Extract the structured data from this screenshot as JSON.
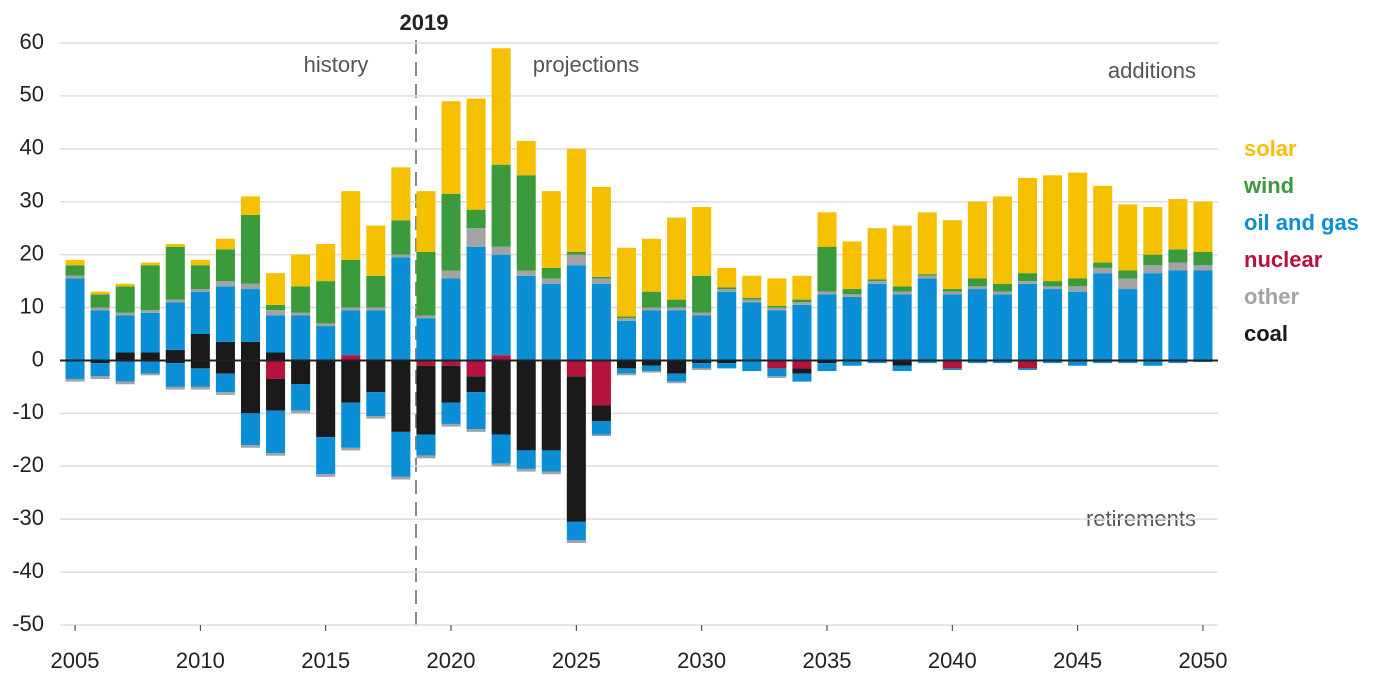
{
  "chart_data": {
    "type": "stacked_bar",
    "annotations": {
      "divider": "2019",
      "history": "history",
      "projections": "projections",
      "additions": "additions",
      "retirements": "retirements"
    },
    "x": [
      2005,
      2006,
      2007,
      2008,
      2009,
      2010,
      2011,
      2012,
      2013,
      2014,
      2015,
      2016,
      2017,
      2018,
      2019,
      2020,
      2021,
      2022,
      2023,
      2024,
      2025,
      2026,
      2027,
      2028,
      2029,
      2030,
      2031,
      2032,
      2033,
      2034,
      2035,
      2036,
      2037,
      2038,
      2039,
      2040,
      2041,
      2042,
      2043,
      2044,
      2045,
      2046,
      2047,
      2048,
      2049,
      2050
    ],
    "xlim": [
      2004.4,
      2050.6
    ],
    "xticks": [
      2005,
      2010,
      2015,
      2020,
      2025,
      2030,
      2035,
      2040,
      2045,
      2050
    ],
    "ylim": [
      -50,
      60
    ],
    "yticks": [
      -50,
      -40,
      -30,
      -20,
      -10,
      0,
      10,
      20,
      30,
      40,
      50,
      60
    ],
    "grid": true,
    "legend": "right",
    "series": [
      {
        "name": "solar",
        "color": "#f5c000",
        "values": [
          1,
          0.5,
          0.5,
          0.5,
          0.5,
          1,
          2,
          3.5,
          6,
          6,
          7,
          13,
          9.5,
          10,
          11.5,
          17.5,
          21,
          22,
          6.5,
          14.5,
          19.5,
          17,
          13,
          10,
          15.5,
          13,
          3.7,
          4.2,
          5.2,
          4.5,
          6.5,
          9,
          9.7,
          11.5,
          11.7,
          13,
          14.5,
          16.5,
          18,
          20,
          20,
          14.5,
          12.5,
          9,
          9.5,
          9.5
        ],
        "retirements": [
          0,
          0,
          0,
          0,
          0,
          0,
          0,
          0,
          0,
          0,
          0,
          0,
          0,
          0,
          0,
          0,
          0,
          0,
          0,
          0,
          0,
          0,
          0,
          0,
          0,
          0,
          0,
          0,
          0,
          0,
          0,
          0,
          0,
          0,
          0,
          0,
          0,
          0,
          0,
          0,
          0,
          0,
          0,
          0,
          0,
          0
        ]
      },
      {
        "name": "wind",
        "color": "#3a9a3c",
        "values": [
          2,
          2.5,
          5,
          8.5,
          10,
          4.5,
          6,
          13,
          1,
          5,
          8,
          9,
          6,
          6.5,
          12,
          14.5,
          3.5,
          15.5,
          18,
          2,
          0.5,
          0.3,
          0.3,
          3,
          1.5,
          7,
          0.3,
          0.3,
          0.3,
          0.5,
          8.5,
          1,
          0.3,
          1,
          0.3,
          0.5,
          1.5,
          1.5,
          1.5,
          1,
          1.5,
          1,
          1.5,
          2,
          2.5,
          2.5
        ],
        "retirements": [
          0,
          0,
          0,
          0,
          0,
          0,
          0,
          0,
          0,
          0,
          0,
          0,
          0,
          0,
          0,
          0,
          0,
          0,
          0,
          0,
          0,
          0,
          0,
          0,
          0,
          0,
          0,
          0,
          0,
          0,
          0,
          0,
          0,
          0,
          0,
          0,
          0,
          0,
          0,
          0,
          0,
          0,
          0,
          0,
          0,
          0
        ]
      },
      {
        "name": "oil and gas",
        "color": "#0a8fd6",
        "values": [
          15.5,
          9.5,
          7,
          7.5,
          9,
          8,
          10.5,
          10,
          7,
          8.5,
          6.5,
          8.5,
          9.5,
          19.5,
          8,
          15.5,
          21.5,
          19,
          16,
          14.5,
          18,
          14.5,
          7.5,
          9.5,
          9.5,
          8.5,
          13,
          11,
          9.5,
          10.5,
          12.5,
          12,
          14.5,
          12.5,
          15.5,
          12.5,
          13.5,
          12.5,
          14.5,
          13.5,
          13,
          16.5,
          13.5,
          16.5,
          17,
          17
        ],
        "retirements": [
          -3.5,
          -2.5,
          -4,
          -2.5,
          -4.5,
          -3.5,
          -3.5,
          -6,
          -8,
          -5,
          -7,
          -8.5,
          -4.5,
          -8.5,
          -4,
          -4,
          -7,
          -5.5,
          -3.5,
          -4,
          -3.5,
          -2.5,
          -1,
          -1,
          -1.5,
          -1,
          -1,
          -2,
          -1.5,
          -1.5,
          -1.5,
          -1,
          -0.5,
          -1,
          -0.5,
          -0.3,
          -0.5,
          -0.5,
          -0.3,
          -0.5,
          -1,
          -0.5,
          -0.5,
          -1,
          -0.5,
          -0.3
        ]
      },
      {
        "name": "nuclear",
        "color": "#b5123e",
        "values": [
          0,
          0,
          0,
          0,
          0,
          0,
          0,
          0,
          0,
          0,
          0,
          1,
          0,
          0,
          0,
          0,
          0,
          1,
          0,
          0,
          0,
          0,
          0,
          0,
          0,
          0,
          0,
          0,
          0,
          0,
          0,
          0,
          0,
          0,
          0,
          0,
          0,
          0,
          0,
          0,
          0,
          0,
          0,
          0,
          0,
          0
        ],
        "retirements": [
          0,
          0,
          0,
          0,
          0,
          0,
          0,
          0,
          -3.5,
          0,
          0,
          0,
          0,
          0,
          -1,
          -1,
          -3,
          0,
          0,
          0,
          -3,
          -8.5,
          0,
          0,
          0,
          0,
          0,
          0,
          -1.5,
          -1.5,
          0,
          0,
          0,
          0,
          0,
          -1.5,
          0,
          0,
          -1.5,
          0,
          0,
          0,
          0,
          0,
          0,
          0
        ]
      },
      {
        "name": "other",
        "color": "#a3a3a3",
        "values": [
          0.5,
          0.5,
          0.5,
          0.5,
          0.5,
          0.5,
          1,
          1,
          1,
          0.5,
          0.5,
          0.5,
          0.5,
          0.5,
          0.5,
          1.5,
          3.5,
          1.5,
          1,
          1,
          2,
          1,
          0.5,
          0.5,
          0.5,
          0.5,
          0.5,
          0.5,
          0.5,
          0.5,
          0.5,
          0.5,
          0.5,
          0.5,
          0.5,
          0.5,
          0.5,
          0.5,
          0.5,
          0.5,
          1,
          1,
          2,
          1.5,
          1.5,
          1
        ],
        "retirements": [
          -0.5,
          -0.5,
          -0.5,
          -0.3,
          -0.5,
          -0.5,
          -0.5,
          -0.5,
          -0.5,
          -0.5,
          -0.5,
          -0.5,
          -0.5,
          -0.5,
          -0.5,
          -0.5,
          -0.5,
          -0.5,
          -0.5,
          -0.5,
          -0.5,
          -0.3,
          -0.3,
          -0.3,
          -0.3,
          -0.3,
          0,
          0,
          -0.3,
          0,
          0,
          0,
          0,
          0,
          0,
          0,
          0,
          0,
          0,
          0,
          0,
          0,
          0,
          0,
          0,
          0
        ]
      },
      {
        "name": "coal",
        "color": "#1a1a1a",
        "values": [
          0,
          0,
          1.5,
          1.5,
          2,
          5,
          3.5,
          3.5,
          1.5,
          0,
          0,
          0,
          0,
          0,
          0,
          0,
          0,
          0,
          0,
          0,
          0,
          0,
          0,
          0,
          0,
          0,
          0,
          0,
          0,
          0,
          0,
          0,
          0,
          0,
          0,
          0,
          0,
          0,
          0,
          0,
          0,
          0,
          0,
          0,
          0,
          0
        ],
        "retirements": [
          0,
          -0.5,
          0,
          0,
          -0.5,
          -1.5,
          -2.5,
          -10,
          -6,
          -4.5,
          -14.5,
          -8,
          -6,
          -13.5,
          -13,
          -7,
          -3,
          -14,
          -17,
          -17,
          -27.5,
          -3,
          -1.5,
          -1,
          -2.5,
          -0.5,
          -0.5,
          0,
          0,
          -1,
          -0.5,
          0,
          0,
          -1,
          0,
          0,
          0,
          0,
          0,
          0,
          0,
          0,
          0,
          0,
          0,
          0
        ]
      }
    ]
  }
}
